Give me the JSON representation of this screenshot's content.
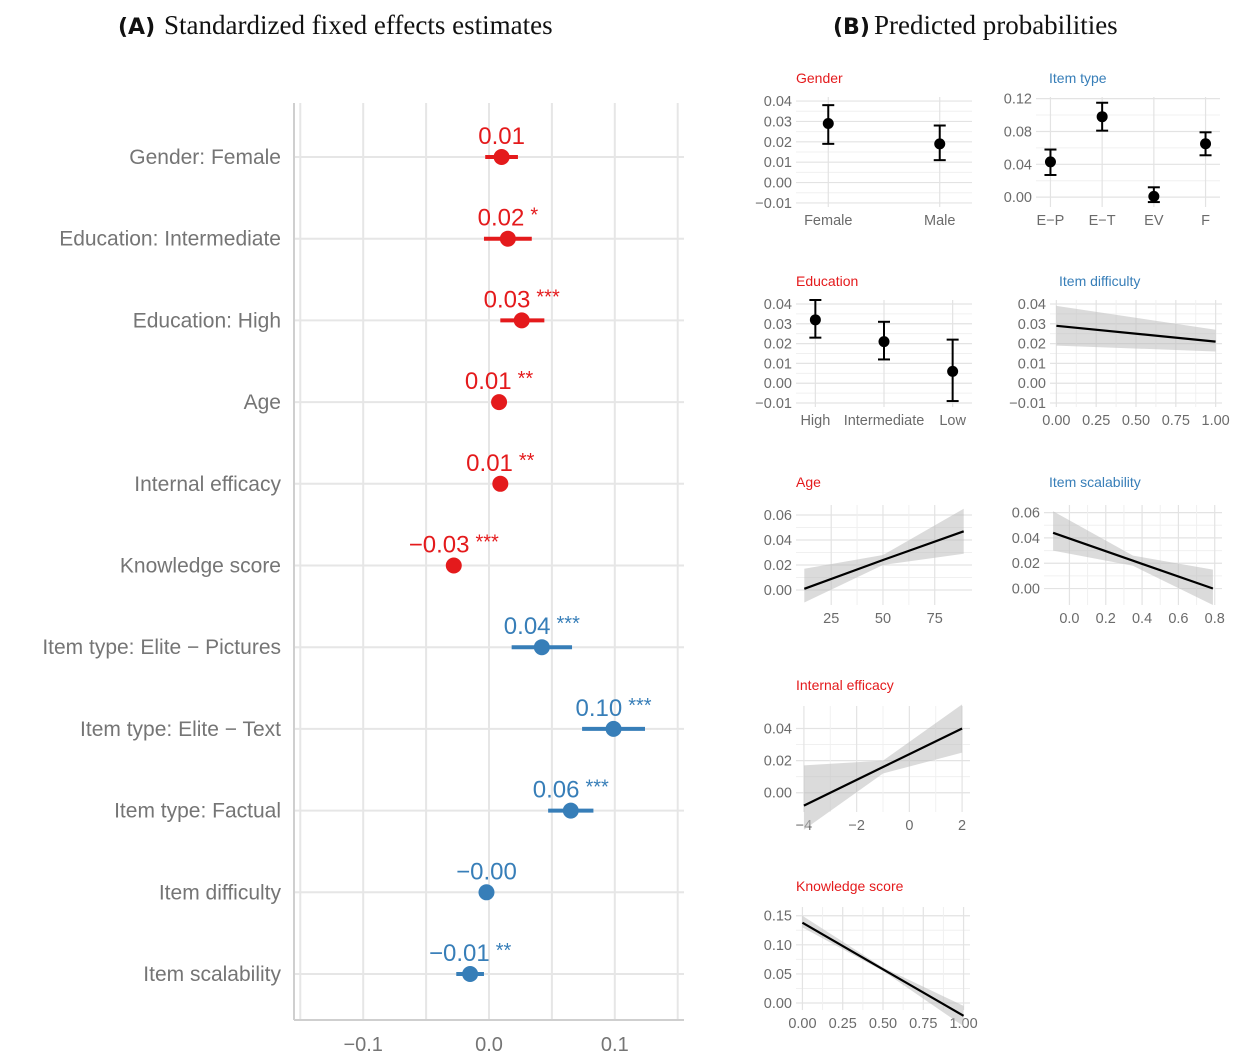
{
  "colors": {
    "person": "#e41a1c",
    "item": "#377eb8",
    "grey_text": "#757575",
    "band": "#bdbdbd",
    "line": "#000000"
  },
  "panel_a": {
    "letter": "(A)",
    "title": "Standardized fixed effects estimates"
  },
  "panel_b": {
    "letter": "(B)",
    "title": "Predicted probabilities"
  },
  "chart_data": [
    {
      "id": "A",
      "type": "dot-interval",
      "title": "Standardized fixed effects estimates",
      "xlim": [
        -0.155,
        0.155
      ],
      "xticks": [
        -0.1,
        0.0,
        0.1
      ],
      "xtick_labels": [
        "−0.1",
        "0.0",
        "0.1"
      ],
      "grid": true,
      "rows": [
        {
          "label": "Gender: Female",
          "est": 0.01,
          "lo": -0.003,
          "hi": 0.023,
          "est_label": "0.01",
          "sig": "",
          "group": "person"
        },
        {
          "label": "Education: Intermediate",
          "est": 0.015,
          "lo": -0.004,
          "hi": 0.034,
          "est_label": "0.02",
          "sig": "*",
          "group": "person"
        },
        {
          "label": "Education: High",
          "est": 0.026,
          "lo": 0.009,
          "hi": 0.044,
          "est_label": "0.03",
          "sig": "***",
          "group": "person"
        },
        {
          "label": "Age",
          "est": 0.008,
          "lo": 0.003,
          "hi": 0.013,
          "est_label": "0.01",
          "sig": "**",
          "group": "person"
        },
        {
          "label": "Internal efficacy",
          "est": 0.009,
          "lo": 0.004,
          "hi": 0.014,
          "est_label": "0.01",
          "sig": "**",
          "group": "person"
        },
        {
          "label": "Knowledge score",
          "est": -0.028,
          "lo": -0.034,
          "hi": -0.022,
          "est_label": "−0.03",
          "sig": "***",
          "group": "person"
        },
        {
          "label": "Item type: Elite − Pictures",
          "est": 0.042,
          "lo": 0.018,
          "hi": 0.066,
          "est_label": "0.04",
          "sig": "***",
          "group": "item"
        },
        {
          "label": "Item type: Elite − Text",
          "est": 0.099,
          "lo": 0.074,
          "hi": 0.124,
          "est_label": "0.10",
          "sig": "***",
          "group": "item"
        },
        {
          "label": "Item type: Factual",
          "est": 0.065,
          "lo": 0.047,
          "hi": 0.083,
          "est_label": "0.06",
          "sig": "***",
          "group": "item"
        },
        {
          "label": "Item difficulty",
          "est": -0.002,
          "lo": -0.006,
          "hi": 0.002,
          "est_label": "−0.00",
          "sig": "",
          "group": "item"
        },
        {
          "label": "Item scalability",
          "est": -0.015,
          "lo": -0.026,
          "hi": -0.004,
          "est_label": "−0.01",
          "sig": "**",
          "group": "item"
        }
      ]
    },
    {
      "id": "B-gender",
      "type": "errorbar",
      "title": "Gender",
      "group": "person",
      "categories": [
        "Female",
        "Male"
      ],
      "values": [
        0.029,
        0.019
      ],
      "lower": [
        0.019,
        0.011
      ],
      "upper": [
        0.038,
        0.028
      ],
      "ylim": [
        -0.012,
        0.042
      ],
      "yticks": [
        -0.01,
        0.0,
        0.01,
        0.02,
        0.03,
        0.04
      ],
      "ytick_labels": [
        "−0.01",
        "0.00",
        "0.01",
        "0.02",
        "0.03",
        "0.04"
      ]
    },
    {
      "id": "B-itemtype",
      "type": "errorbar",
      "title": "Item type",
      "group": "item",
      "categories": [
        "E−P",
        "E−T",
        "EV",
        "F"
      ],
      "values": [
        0.043,
        0.098,
        0.001,
        0.065
      ],
      "lower": [
        0.027,
        0.081,
        -0.006,
        0.051
      ],
      "upper": [
        0.058,
        0.115,
        0.012,
        0.079
      ],
      "ylim": [
        -0.012,
        0.122
      ],
      "yticks": [
        0.0,
        0.04,
        0.08,
        0.12
      ],
      "ytick_labels": [
        "0.00",
        "0.04",
        "0.08",
        "0.12"
      ]
    },
    {
      "id": "B-education",
      "type": "errorbar",
      "title": "Education",
      "group": "person",
      "categories": [
        "High",
        "Intermediate",
        "Low"
      ],
      "values": [
        0.032,
        0.021,
        0.006
      ],
      "lower": [
        0.023,
        0.012,
        -0.009
      ],
      "upper": [
        0.042,
        0.031,
        0.022
      ],
      "ylim": [
        -0.012,
        0.042
      ],
      "yticks": [
        -0.01,
        0.0,
        0.01,
        0.02,
        0.03,
        0.04
      ],
      "ytick_labels": [
        "−0.01",
        "0.00",
        "0.01",
        "0.02",
        "0.03",
        "0.04"
      ]
    },
    {
      "id": "B-difficulty",
      "type": "line",
      "title": "Item difficulty",
      "group": "item",
      "x": [
        0.0,
        1.0
      ],
      "y": [
        0.029,
        0.021
      ],
      "ci_lower": [
        0.019,
        0.016
      ],
      "ci_upper": [
        0.039,
        0.027
      ],
      "xlim": [
        -0.04,
        1.04
      ],
      "ylim": [
        -0.012,
        0.042
      ],
      "xticks": [
        0.0,
        0.25,
        0.5,
        0.75,
        1.0
      ],
      "xtick_labels": [
        "0.00",
        "0.25",
        "0.50",
        "0.75",
        "1.00"
      ],
      "yticks": [
        -0.01,
        0.0,
        0.01,
        0.02,
        0.03,
        0.04
      ],
      "ytick_labels": [
        "−0.01",
        "0.00",
        "0.01",
        "0.02",
        "0.03",
        "0.04"
      ]
    },
    {
      "id": "B-age",
      "type": "line",
      "title": "Age",
      "group": "person",
      "x": [
        12,
        50,
        89
      ],
      "y": [
        0.001,
        0.024,
        0.047
      ],
      "ci_lower": [
        -0.01,
        0.02,
        0.029
      ],
      "ci_upper": [
        0.017,
        0.028,
        0.065
      ],
      "xlim": [
        8,
        93
      ],
      "ylim": [
        -0.012,
        0.068
      ],
      "xticks": [
        25,
        50,
        75
      ],
      "xtick_labels": [
        "25",
        "50",
        "75"
      ],
      "yticks": [
        0.0,
        0.02,
        0.04,
        0.06
      ],
      "ytick_labels": [
        "0.00",
        "0.02",
        "0.04",
        "0.06"
      ]
    },
    {
      "id": "B-scalability",
      "type": "line",
      "title": "Item scalability",
      "group": "item",
      "x": [
        -0.09,
        0.35,
        0.79
      ],
      "y": [
        0.044,
        0.022,
        0.0
      ],
      "ci_lower": [
        0.03,
        0.018,
        -0.013
      ],
      "ci_upper": [
        0.061,
        0.026,
        0.015
      ],
      "xlim": [
        -0.14,
        0.84
      ],
      "ylim": [
        -0.013,
        0.066
      ],
      "xticks": [
        0.0,
        0.2,
        0.4,
        0.6,
        0.8
      ],
      "xtick_labels": [
        "0.0",
        "0.2",
        "0.4",
        "0.6",
        "0.8"
      ],
      "yticks": [
        0.0,
        0.02,
        0.04,
        0.06
      ],
      "ytick_labels": [
        "0.00",
        "0.02",
        "0.04",
        "0.06"
      ]
    },
    {
      "id": "B-efficacy",
      "type": "line",
      "title": "Internal efficacy",
      "group": "person",
      "x": [
        -4,
        -1,
        2
      ],
      "y": [
        -0.008,
        0.016,
        0.04
      ],
      "ci_lower": [
        -0.023,
        0.012,
        0.025
      ],
      "ci_upper": [
        0.017,
        0.02,
        0.055
      ],
      "xlim": [
        -4.3,
        2.3
      ],
      "ylim": [
        -0.012,
        0.054
      ],
      "xticks": [
        -4,
        -2,
        0,
        2
      ],
      "xtick_labels": [
        "−4",
        "−2",
        "0",
        "2"
      ],
      "yticks": [
        0.0,
        0.02,
        0.04
      ],
      "ytick_labels": [
        "0.00",
        "0.02",
        "0.04"
      ]
    },
    {
      "id": "B-knowledge",
      "type": "line",
      "title": "Knowledge score",
      "group": "person",
      "x": [
        0.0,
        0.5,
        1.0
      ],
      "y": [
        0.138,
        0.058,
        -0.022
      ],
      "ci_lower": [
        0.13,
        0.055,
        -0.04
      ],
      "ci_upper": [
        0.15,
        0.061,
        -0.005
      ],
      "xlim": [
        -0.04,
        1.04
      ],
      "ylim": [
        -0.012,
        0.165
      ],
      "xticks": [
        0.0,
        0.25,
        0.5,
        0.75,
        1.0
      ],
      "xtick_labels": [
        "0.00",
        "0.25",
        "0.50",
        "0.75",
        "1.00"
      ],
      "yticks": [
        0.0,
        0.05,
        0.1,
        0.15
      ],
      "ytick_labels": [
        "0.00",
        "0.05",
        "0.10",
        "0.15"
      ]
    }
  ]
}
